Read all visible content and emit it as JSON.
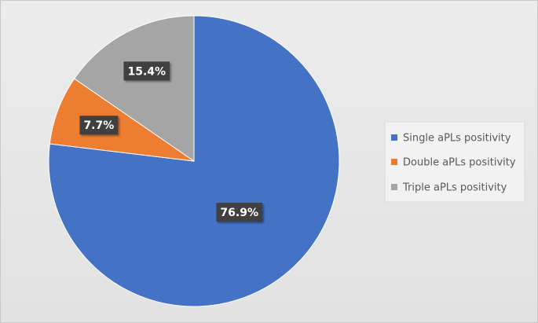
{
  "chart_data": {
    "type": "pie",
    "categories": [
      "Single aPLs positivity",
      "Double aPLs positivity",
      "Triple aPLs positivity"
    ],
    "values": [
      76.9,
      7.7,
      15.4
    ],
    "value_labels": [
      "76.9%",
      "7.7%",
      "15.4%"
    ],
    "colors": [
      "#4472c4",
      "#ed7d31",
      "#a5a5a5"
    ],
    "legend": "right"
  }
}
